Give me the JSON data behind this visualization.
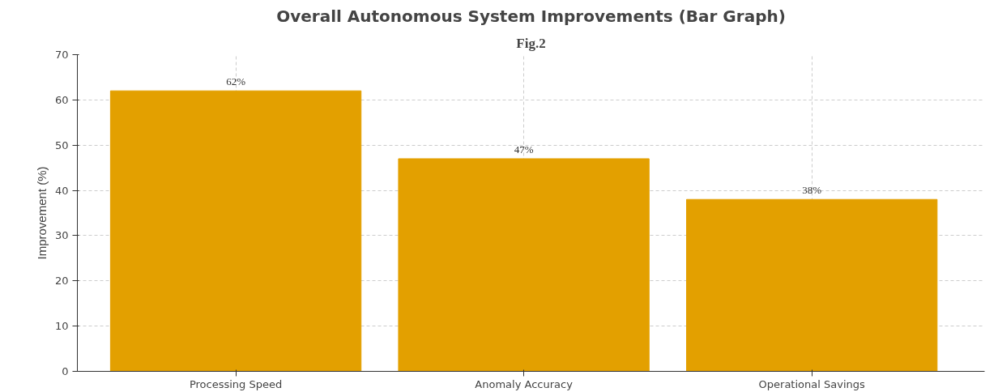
{
  "chart_data": {
    "type": "bar",
    "title": "Fig.2",
    "subtitle": "Overall Autonomous System Improvements (Bar Graph)",
    "ylabel": "Improvement (%)",
    "categories": [
      "Processing Speed",
      "Anomaly Accuracy",
      "Operational Savings"
    ],
    "values": [
      62,
      47,
      38
    ],
    "color": "#e3a000",
    "value_labels": [
      "62%",
      "47%",
      "38%"
    ],
    "ylim": [
      0,
      70
    ],
    "yticks": [
      0,
      10,
      20,
      30,
      40,
      50,
      60,
      70
    ],
    "grid": true
  }
}
